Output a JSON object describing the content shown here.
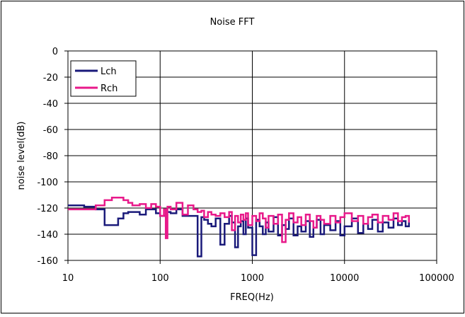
{
  "chart_data": {
    "type": "line",
    "title": "Noise FFT",
    "xlabel": "FREQ(Hz)",
    "ylabel": "noise level(dB)",
    "x_scale": "log",
    "xlim": [
      10,
      100000
    ],
    "ylim": [
      -160,
      0
    ],
    "x_ticks": [
      "10",
      "100",
      "1000",
      "10000",
      "100000"
    ],
    "y_ticks": [
      "0",
      "-20",
      "-40",
      "-60",
      "-80",
      "-100",
      "-120",
      "-140",
      "-160"
    ],
    "grid": true,
    "legend_position": "top-left",
    "series": [
      {
        "name": "Lch",
        "color": "#1a1a7a",
        "x": [
          10,
          15,
          20,
          25,
          30,
          35,
          40,
          45,
          50,
          60,
          70,
          80,
          90,
          100,
          115,
          130,
          150,
          175,
          200,
          230,
          255,
          280,
          300,
          330,
          360,
          400,
          450,
          500,
          560,
          600,
          650,
          700,
          750,
          800,
          850,
          900,
          1000,
          1100,
          1200,
          1300,
          1400,
          1500,
          1700,
          1900,
          2100,
          2300,
          2500,
          2800,
          3100,
          3400,
          3800,
          4200,
          4600,
          5000,
          5500,
          6000,
          7000,
          8000,
          9000,
          10000,
          12000,
          14000,
          16000,
          18000,
          20000,
          23000,
          26000,
          30000,
          34000,
          38000,
          42000,
          46000,
          50000
        ],
        "values": [
          -118,
          -119,
          -121,
          -133,
          -133,
          -128,
          -124,
          -123,
          -123,
          -125,
          -121,
          -121,
          -124,
          -126,
          -123,
          -124,
          -121,
          -126,
          -126,
          -126,
          -157,
          -127,
          -129,
          -132,
          -134,
          -128,
          -148,
          -132,
          -126,
          -131,
          -150,
          -134,
          -130,
          -140,
          -128,
          -135,
          -156,
          -129,
          -134,
          -140,
          -131,
          -138,
          -127,
          -141,
          -133,
          -136,
          -128,
          -141,
          -134,
          -138,
          -130,
          -142,
          -135,
          -129,
          -140,
          -133,
          -137,
          -130,
          -141,
          -134,
          -128,
          -139,
          -132,
          -136,
          -129,
          -138,
          -131,
          -135,
          -128,
          -133,
          -130,
          -134,
          -131
        ]
      },
      {
        "name": "Rch",
        "color": "#e8198a",
        "x": [
          10,
          15,
          20,
          25,
          30,
          35,
          40,
          45,
          50,
          60,
          70,
          80,
          90,
          100,
          110,
          115,
          120,
          130,
          150,
          175,
          200,
          230,
          255,
          280,
          300,
          330,
          360,
          400,
          450,
          500,
          560,
          600,
          650,
          700,
          750,
          800,
          850,
          900,
          1000,
          1100,
          1200,
          1300,
          1400,
          1500,
          1700,
          1900,
          2100,
          2300,
          2500,
          2800,
          3100,
          3400,
          3800,
          4200,
          4600,
          5000,
          5500,
          6000,
          7000,
          8000,
          9000,
          10000,
          12000,
          14000,
          16000,
          18000,
          20000,
          23000,
          26000,
          30000,
          34000,
          38000,
          42000,
          46000,
          50000
        ],
        "values": [
          -121,
          -121,
          -118,
          -114,
          -112,
          -112,
          -114,
          -116,
          -118,
          -117,
          -120,
          -117,
          -119,
          -126,
          -121,
          -143,
          -119,
          -121,
          -116,
          -125,
          -118,
          -121,
          -123,
          -122,
          -127,
          -123,
          -125,
          -126,
          -124,
          -127,
          -123,
          -137,
          -126,
          -131,
          -125,
          -129,
          -124,
          -133,
          -126,
          -130,
          -124,
          -128,
          -135,
          -126,
          -132,
          -125,
          -146,
          -129,
          -124,
          -131,
          -127,
          -133,
          -125,
          -130,
          -135,
          -126,
          -129,
          -132,
          -126,
          -131,
          -127,
          -124,
          -130,
          -126,
          -132,
          -127,
          -125,
          -131,
          -126,
          -129,
          -124,
          -130,
          -127,
          -126,
          -131
        ]
      }
    ]
  }
}
